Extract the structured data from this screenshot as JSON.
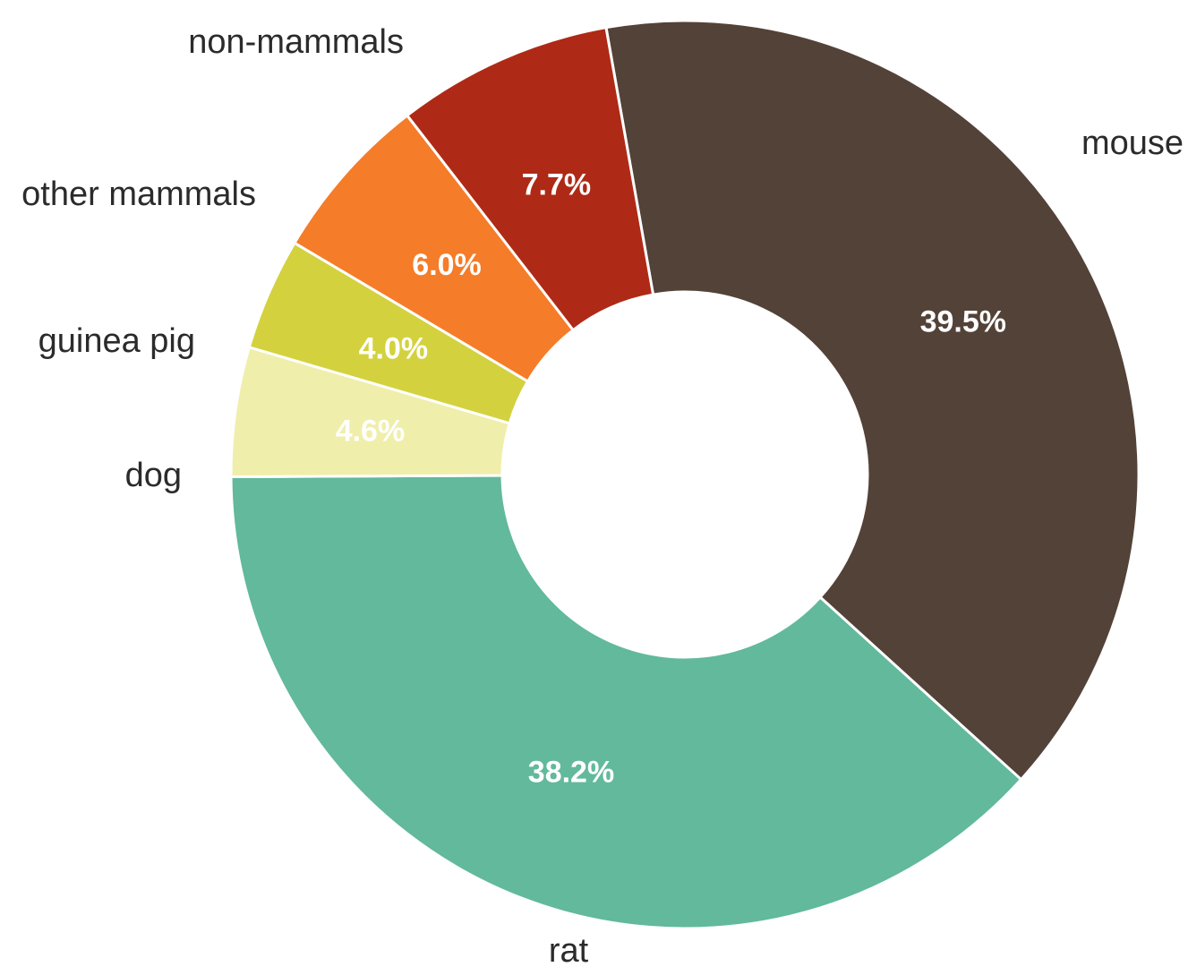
{
  "chart_data": {
    "type": "pie",
    "variant": "donut",
    "slices": [
      {
        "label": "mouse",
        "value": 39.5,
        "value_label": "39.5%",
        "color": "#534238"
      },
      {
        "label": "rat",
        "value": 38.2,
        "value_label": "38.2%",
        "color": "#62b99c"
      },
      {
        "label": "dog",
        "value": 4.6,
        "value_label": "4.6%",
        "color": "#f0eeab"
      },
      {
        "label": "guinea pig",
        "value": 4.0,
        "value_label": "4.0%",
        "color": "#d4d13f"
      },
      {
        "label": "other mammals",
        "value": 6.0,
        "value_label": "6.0%",
        "color": "#f57c28"
      },
      {
        "label": "non-mammals",
        "value": 7.7,
        "value_label": "7.7%",
        "color": "#ae2a16"
      }
    ],
    "start": "top",
    "direction": "clockwise",
    "legend": "none"
  }
}
